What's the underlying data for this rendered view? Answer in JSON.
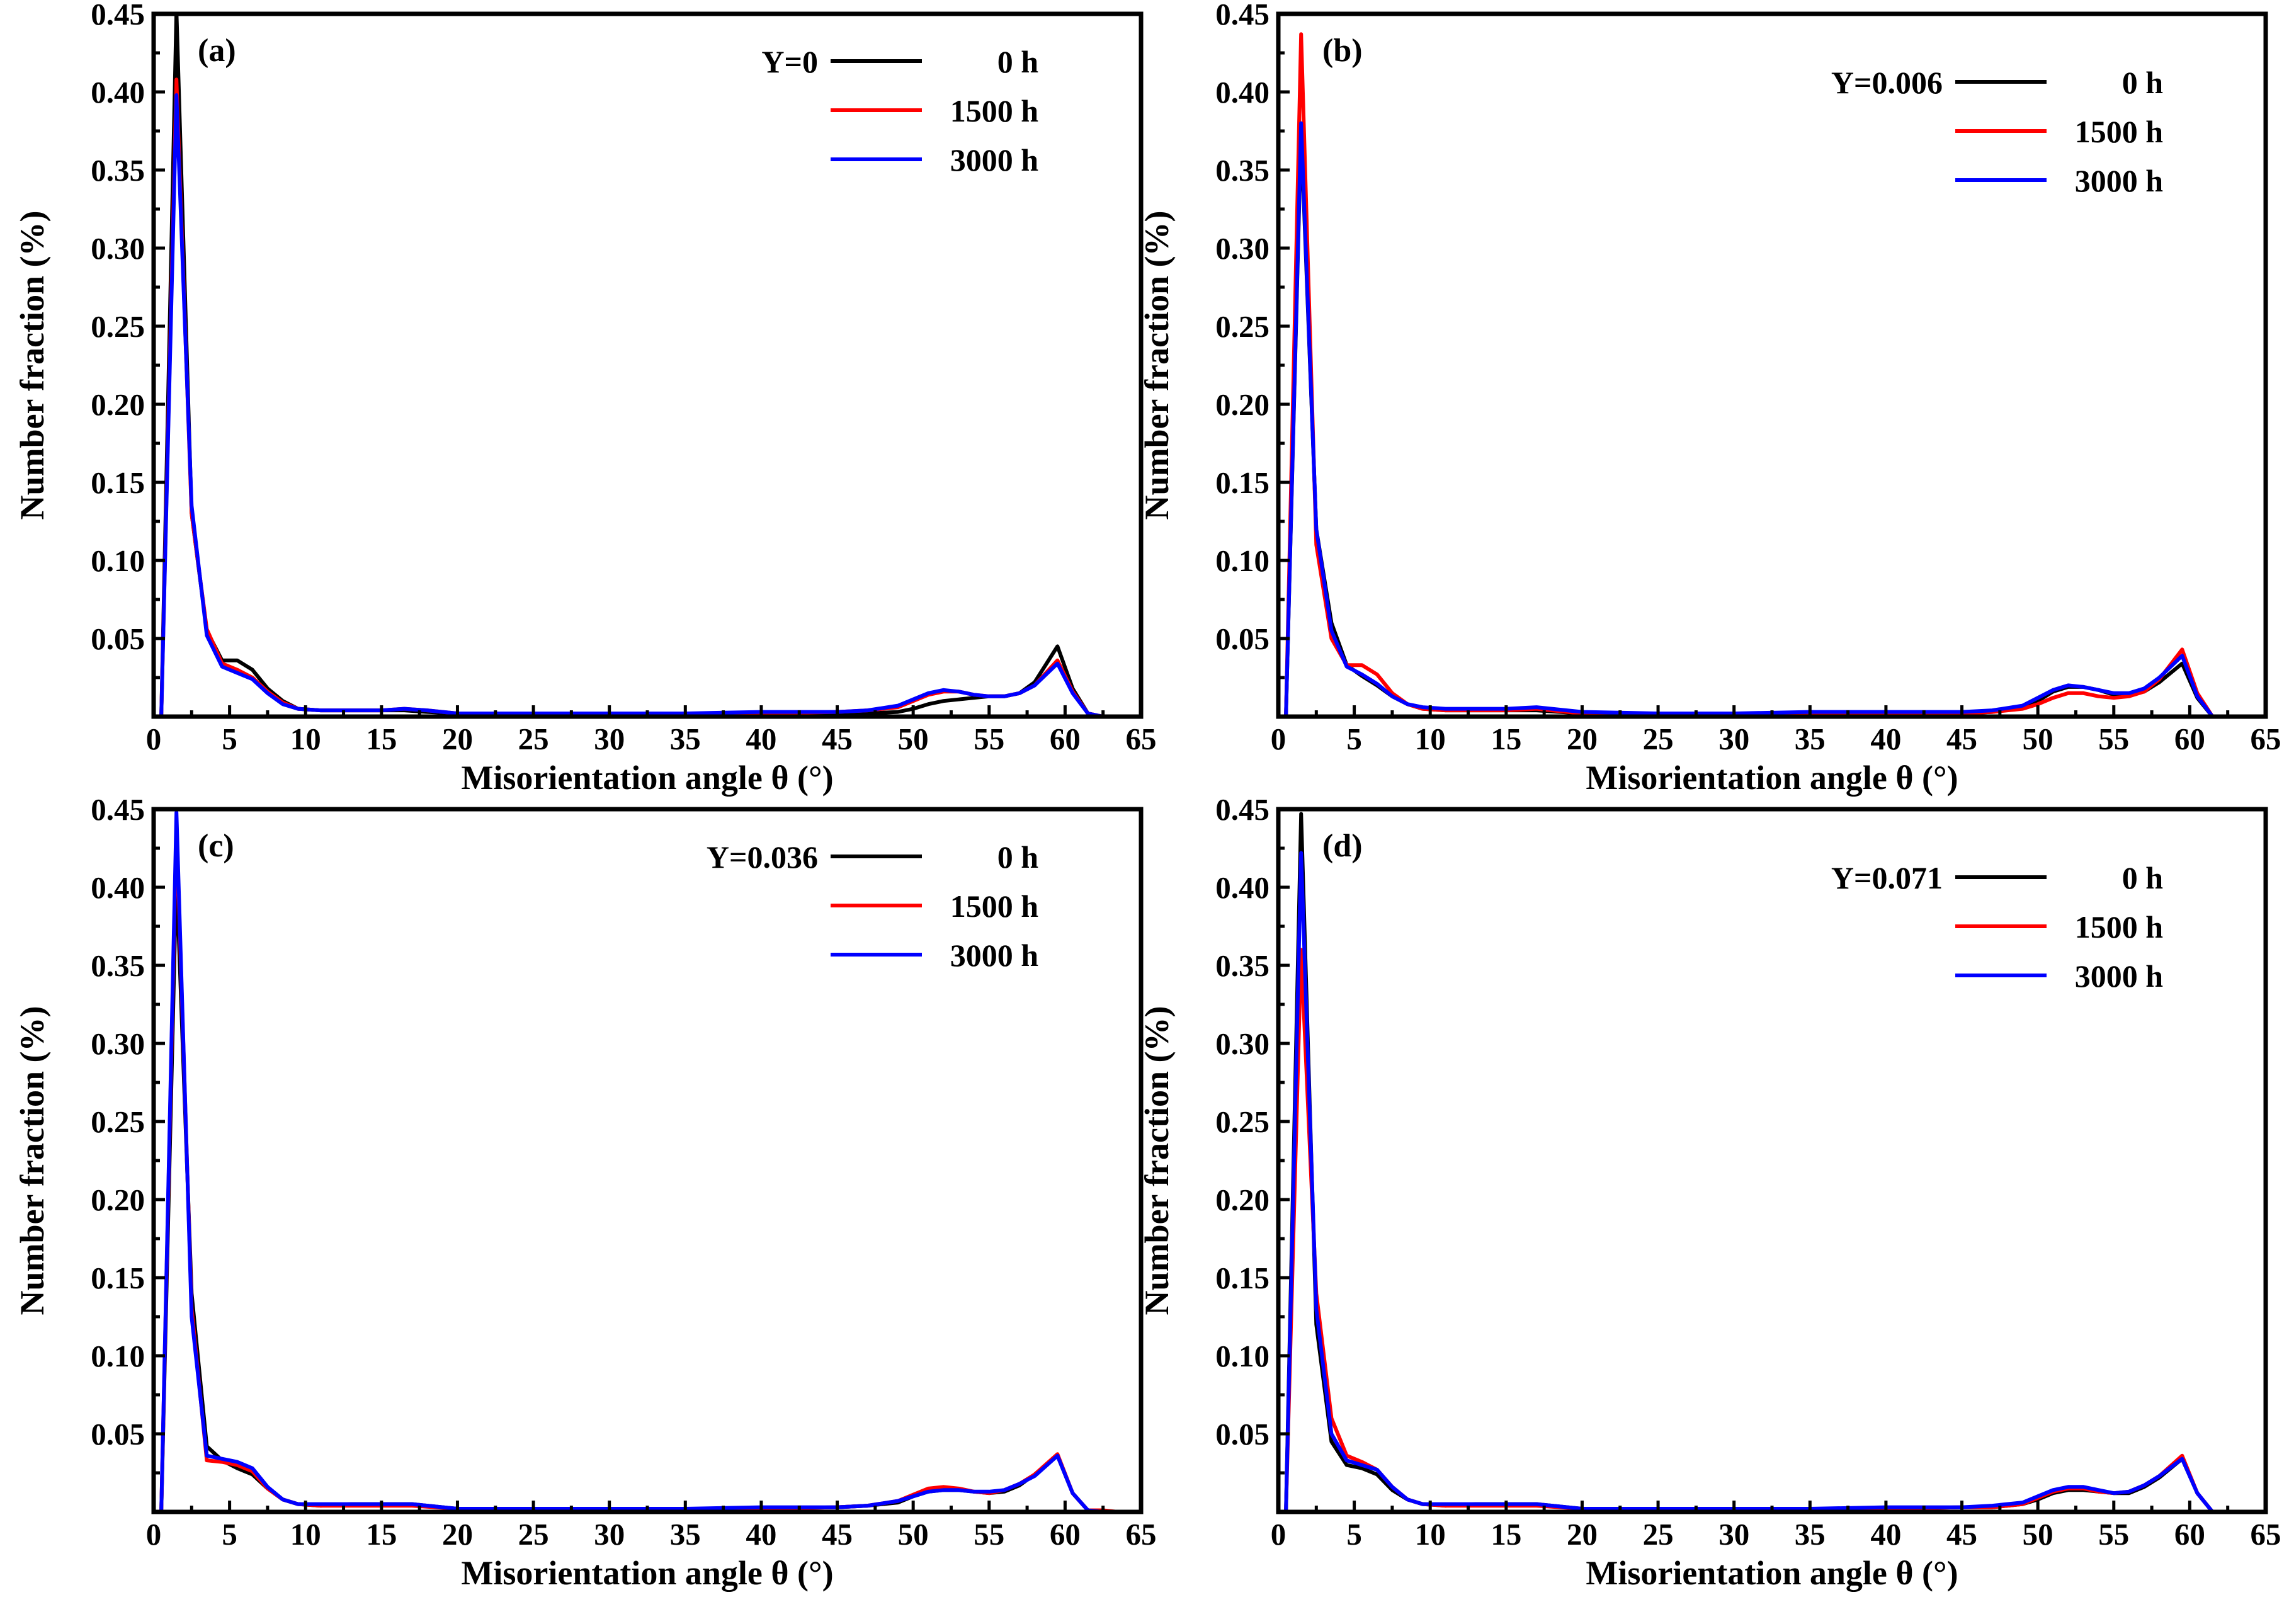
{
  "chart_data": [
    {
      "panel": "(a)",
      "type": "line",
      "title": "",
      "xlabel": "Misorientation angle θ (°)",
      "ylabel": "Number fraction (%)",
      "xlim": [
        0,
        65
      ],
      "ylim": [
        0,
        0.45
      ],
      "x_ticks": [
        "0",
        "5",
        "10",
        "15",
        "20",
        "25",
        "30",
        "35",
        "40",
        "45",
        "50",
        "55",
        "60",
        "65"
      ],
      "y_ticks": [
        "0.05",
        "0.10",
        "0.15",
        "0.20",
        "0.25",
        "0.30",
        "0.35",
        "0.40",
        "0.45"
      ],
      "composition": "Y=0",
      "legend_position": "top-right",
      "series": [
        {
          "name": "0 h",
          "color": "#000000",
          "x": [
            0.5,
            1.5,
            2.5,
            3.5,
            4.5,
            5.5,
            6.5,
            7.5,
            8.5,
            9.5,
            11,
            13,
            15,
            16.5,
            18,
            20,
            25,
            30,
            35,
            40,
            45,
            47,
            49,
            50,
            51,
            52,
            53,
            54,
            55,
            56,
            57,
            58,
            59.5,
            60.5,
            61.5,
            62.5
          ],
          "y": [
            0,
            0.452,
            0.13,
            0.055,
            0.036,
            0.036,
            0.03,
            0.018,
            0.01,
            0.005,
            0.004,
            0.004,
            0.004,
            0.004,
            0.003,
            0.002,
            0.002,
            0.002,
            0.002,
            0.002,
            0.002,
            0.002,
            0.003,
            0.005,
            0.008,
            0.01,
            0.011,
            0.012,
            0.013,
            0.013,
            0.015,
            0.022,
            0.045,
            0.018,
            0.002,
            0
          ]
        },
        {
          "name": "1500 h",
          "color": "#ff0000",
          "x": [
            0.5,
            1.5,
            2.5,
            3.5,
            4.5,
            5.5,
            6.5,
            7.5,
            8.5,
            9.5,
            11,
            13,
            15,
            16.5,
            18,
            20,
            25,
            30,
            35,
            40,
            45,
            47,
            49,
            50,
            51,
            52,
            53,
            54,
            55,
            56,
            57,
            58,
            59.5,
            60.5,
            61.5,
            62.5
          ],
          "y": [
            0,
            0.408,
            0.13,
            0.056,
            0.034,
            0.03,
            0.025,
            0.016,
            0.009,
            0.005,
            0.004,
            0.004,
            0.004,
            0.005,
            0.004,
            0.002,
            0.002,
            0.002,
            0.002,
            0.002,
            0.003,
            0.004,
            0.006,
            0.01,
            0.014,
            0.016,
            0.016,
            0.014,
            0.013,
            0.013,
            0.015,
            0.02,
            0.036,
            0.016,
            0.002,
            0
          ]
        },
        {
          "name": "3000 h",
          "color": "#0000ff",
          "x": [
            0.5,
            1.5,
            2.5,
            3.5,
            4.5,
            5.5,
            6.5,
            7.5,
            8.5,
            9.5,
            11,
            13,
            15,
            16.5,
            18,
            20,
            25,
            30,
            35,
            40,
            45,
            47,
            49,
            50,
            51,
            52,
            53,
            54,
            55,
            56,
            57,
            58,
            59.5,
            60.5,
            61.5,
            62.5
          ],
          "y": [
            0,
            0.398,
            0.135,
            0.052,
            0.032,
            0.028,
            0.024,
            0.015,
            0.008,
            0.005,
            0.004,
            0.004,
            0.004,
            0.005,
            0.004,
            0.002,
            0.002,
            0.002,
            0.002,
            0.003,
            0.003,
            0.004,
            0.007,
            0.011,
            0.015,
            0.017,
            0.016,
            0.014,
            0.013,
            0.013,
            0.015,
            0.02,
            0.034,
            0.015,
            0.002,
            0
          ]
        }
      ]
    },
    {
      "panel": "(b)",
      "type": "line",
      "title": "",
      "xlabel": "Misorientation angle θ (°)",
      "ylabel": "Number fraction (%)",
      "xlim": [
        0,
        65
      ],
      "ylim": [
        0,
        0.45
      ],
      "x_ticks": [
        "0",
        "5",
        "10",
        "15",
        "20",
        "25",
        "30",
        "35",
        "40",
        "45",
        "50",
        "55",
        "60",
        "65"
      ],
      "y_ticks": [
        "0.05",
        "0.10",
        "0.15",
        "0.20",
        "0.25",
        "0.30",
        "0.35",
        "0.40",
        "0.45"
      ],
      "composition": "Y=0.006",
      "legend_position": "top-right",
      "series": [
        {
          "name": "0 h",
          "color": "#000000",
          "x": [
            0.5,
            1.5,
            2.5,
            3.5,
            4.5,
            5.5,
            6.5,
            7.5,
            8.5,
            9.5,
            11,
            13,
            15,
            17,
            20,
            25,
            30,
            35,
            40,
            45,
            47,
            49,
            50,
            51,
            52,
            53,
            54,
            55,
            56,
            57,
            58,
            59.5,
            60.5,
            61.5
          ],
          "y": [
            0,
            0.375,
            0.12,
            0.06,
            0.033,
            0.026,
            0.02,
            0.013,
            0.008,
            0.005,
            0.004,
            0.004,
            0.004,
            0.004,
            0.002,
            0.002,
            0.002,
            0.002,
            0.002,
            0.002,
            0.003,
            0.006,
            0.01,
            0.016,
            0.019,
            0.019,
            0.017,
            0.014,
            0.014,
            0.016,
            0.022,
            0.034,
            0.012,
            0
          ]
        },
        {
          "name": "1500 h",
          "color": "#ff0000",
          "x": [
            0.5,
            1.5,
            2.5,
            3.5,
            4.5,
            5.5,
            6.5,
            7.5,
            8.5,
            9.5,
            11,
            13,
            15,
            17,
            20,
            25,
            30,
            35,
            40,
            45,
            47,
            49,
            50,
            51,
            52,
            53,
            54,
            55,
            56,
            57,
            58,
            59.5,
            60.5,
            61.5
          ],
          "y": [
            0,
            0.437,
            0.11,
            0.05,
            0.033,
            0.033,
            0.027,
            0.015,
            0.008,
            0.005,
            0.004,
            0.004,
            0.004,
            0.005,
            0.002,
            0.002,
            0.002,
            0.002,
            0.002,
            0.002,
            0.003,
            0.005,
            0.008,
            0.012,
            0.015,
            0.015,
            0.013,
            0.012,
            0.013,
            0.016,
            0.024,
            0.043,
            0.015,
            0
          ]
        },
        {
          "name": "3000 h",
          "color": "#0000ff",
          "x": [
            0.5,
            1.5,
            2.5,
            3.5,
            4.5,
            5.5,
            6.5,
            7.5,
            8.5,
            9.5,
            11,
            13,
            15,
            17,
            20,
            25,
            30,
            35,
            40,
            45,
            47,
            49,
            50,
            51,
            52,
            53,
            54,
            55,
            56,
            57,
            58,
            59.5,
            60.5,
            61.5
          ],
          "y": [
            0,
            0.38,
            0.12,
            0.055,
            0.032,
            0.027,
            0.021,
            0.013,
            0.008,
            0.006,
            0.005,
            0.005,
            0.005,
            0.006,
            0.003,
            0.002,
            0.002,
            0.003,
            0.003,
            0.003,
            0.004,
            0.007,
            0.012,
            0.017,
            0.02,
            0.019,
            0.017,
            0.015,
            0.015,
            0.018,
            0.025,
            0.039,
            0.013,
            0
          ]
        }
      ]
    },
    {
      "panel": "(c)",
      "type": "line",
      "title": "",
      "xlabel": "Misorientation angle θ (°)",
      "ylabel": "Number fraction (%)",
      "xlim": [
        0,
        65
      ],
      "ylim": [
        0,
        0.45
      ],
      "x_ticks": [
        "0",
        "5",
        "10",
        "15",
        "20",
        "25",
        "30",
        "35",
        "40",
        "45",
        "50",
        "55",
        "60",
        "65"
      ],
      "y_ticks": [
        "0.05",
        "0.10",
        "0.15",
        "0.20",
        "0.25",
        "0.30",
        "0.35",
        "0.40",
        "0.45"
      ],
      "composition": "Y=0.036",
      "legend_position": "top-right",
      "series": [
        {
          "name": "0 h",
          "color": "#000000",
          "x": [
            0.5,
            1.5,
            2.5,
            3.5,
            4.5,
            5.5,
            6.5,
            7.5,
            8.5,
            9.5,
            11,
            13,
            15,
            17,
            20,
            25,
            30,
            35,
            40,
            45,
            47,
            49,
            50,
            51,
            52,
            53,
            54,
            55,
            56,
            57,
            58,
            59.5,
            60.5,
            61.5,
            62.5,
            63.5
          ],
          "y": [
            0,
            0.41,
            0.14,
            0.042,
            0.033,
            0.028,
            0.024,
            0.015,
            0.008,
            0.005,
            0.004,
            0.005,
            0.005,
            0.005,
            0.002,
            0.002,
            0.002,
            0.002,
            0.002,
            0.003,
            0.004,
            0.006,
            0.01,
            0.013,
            0.014,
            0.014,
            0.013,
            0.012,
            0.013,
            0.017,
            0.024,
            0.036,
            0.012,
            0.001,
            0,
            0
          ]
        },
        {
          "name": "1500 h",
          "color": "#ff0000",
          "x": [
            0.5,
            1.5,
            2.5,
            3.5,
            4.5,
            5.5,
            6.5,
            7.5,
            8.5,
            9.5,
            11,
            13,
            15,
            17,
            20,
            25,
            30,
            35,
            40,
            45,
            47,
            49,
            50,
            51,
            52,
            53,
            54,
            55,
            56,
            57,
            58,
            59.5,
            60.5,
            61.5,
            62.5,
            63.5
          ],
          "y": [
            0,
            0.44,
            0.13,
            0.033,
            0.032,
            0.03,
            0.026,
            0.015,
            0.008,
            0.005,
            0.004,
            0.004,
            0.004,
            0.004,
            0.002,
            0.002,
            0.002,
            0.002,
            0.002,
            0.003,
            0.004,
            0.007,
            0.011,
            0.015,
            0.016,
            0.015,
            0.013,
            0.012,
            0.014,
            0.018,
            0.024,
            0.037,
            0.012,
            0.001,
            0.001,
            0
          ]
        },
        {
          "name": "3000 h",
          "color": "#0000ff",
          "x": [
            0.5,
            1.5,
            2.5,
            3.5,
            4.5,
            5.5,
            6.5,
            7.5,
            8.5,
            9.5,
            11,
            13,
            15,
            17,
            20,
            25,
            30,
            35,
            40,
            45,
            47,
            49,
            50,
            51,
            52,
            53,
            54,
            55,
            56,
            57,
            58,
            59.5,
            60.5,
            61.5,
            62.5,
            63.5
          ],
          "y": [
            0,
            0.448,
            0.125,
            0.036,
            0.034,
            0.032,
            0.028,
            0.016,
            0.008,
            0.005,
            0.005,
            0.005,
            0.005,
            0.005,
            0.002,
            0.002,
            0.002,
            0.002,
            0.003,
            0.003,
            0.004,
            0.007,
            0.01,
            0.013,
            0.014,
            0.014,
            0.013,
            0.013,
            0.014,
            0.018,
            0.023,
            0.036,
            0.012,
            0.001,
            0,
            0
          ]
        }
      ]
    },
    {
      "panel": "(d)",
      "type": "line",
      "title": "",
      "xlabel": "Misorientation angle θ (°)",
      "ylabel": "Number fraction (%)",
      "xlim": [
        0,
        65
      ],
      "ylim": [
        0,
        0.45
      ],
      "x_ticks": [
        "0",
        "5",
        "10",
        "15",
        "20",
        "25",
        "30",
        "35",
        "40",
        "45",
        "50",
        "55",
        "60",
        "65"
      ],
      "y_ticks": [
        "0.05",
        "0.10",
        "0.15",
        "0.20",
        "0.25",
        "0.30",
        "0.35",
        "0.40",
        "0.45"
      ],
      "composition": "Y=0.071",
      "legend_position": "top-right",
      "series": [
        {
          "name": "0 h",
          "color": "#000000",
          "x": [
            0.5,
            1.5,
            2.5,
            3.5,
            4.5,
            5.5,
            6.5,
            7.5,
            8.5,
            9.5,
            11,
            13,
            15,
            17,
            20,
            25,
            30,
            35,
            40,
            45,
            47,
            49,
            50,
            51,
            52,
            53,
            54,
            55,
            56,
            57,
            58,
            59.5,
            60.5,
            61.5,
            62.5,
            63.5
          ],
          "y": [
            0,
            0.447,
            0.12,
            0.045,
            0.03,
            0.028,
            0.024,
            0.014,
            0.008,
            0.005,
            0.004,
            0.005,
            0.005,
            0.005,
            0.002,
            0.002,
            0.002,
            0.002,
            0.002,
            0.003,
            0.003,
            0.005,
            0.008,
            0.012,
            0.014,
            0.014,
            0.013,
            0.012,
            0.012,
            0.016,
            0.022,
            0.034,
            0.012,
            0,
            0,
            0
          ]
        },
        {
          "name": "1500 h",
          "color": "#ff0000",
          "x": [
            0.5,
            1.5,
            2.5,
            3.5,
            4.5,
            5.5,
            6.5,
            7.5,
            8.5,
            9.5,
            11,
            13,
            15,
            17,
            20,
            25,
            30,
            35,
            40,
            45,
            47,
            49,
            50,
            51,
            52,
            53,
            54,
            55,
            56,
            57,
            58,
            59.5,
            60.5,
            61.5,
            62.5,
            63.5
          ],
          "y": [
            0,
            0.36,
            0.14,
            0.06,
            0.036,
            0.032,
            0.027,
            0.016,
            0.008,
            0.005,
            0.004,
            0.004,
            0.004,
            0.004,
            0.002,
            0.002,
            0.002,
            0.002,
            0.002,
            0.003,
            0.003,
            0.005,
            0.009,
            0.013,
            0.015,
            0.015,
            0.013,
            0.012,
            0.013,
            0.017,
            0.023,
            0.036,
            0.012,
            0,
            0,
            0
          ]
        },
        {
          "name": "3000 h",
          "color": "#0000ff",
          "x": [
            0.5,
            1.5,
            2.5,
            3.5,
            4.5,
            5.5,
            6.5,
            7.5,
            8.5,
            9.5,
            11,
            13,
            15,
            17,
            20,
            25,
            30,
            35,
            40,
            45,
            47,
            49,
            50,
            51,
            52,
            53,
            54,
            55,
            56,
            57,
            58,
            59.5,
            60.5,
            61.5,
            62.5,
            63.5
          ],
          "y": [
            0,
            0.422,
            0.13,
            0.05,
            0.033,
            0.03,
            0.027,
            0.016,
            0.008,
            0.005,
            0.005,
            0.005,
            0.005,
            0.005,
            0.002,
            0.002,
            0.002,
            0.002,
            0.003,
            0.003,
            0.004,
            0.006,
            0.01,
            0.014,
            0.016,
            0.016,
            0.014,
            0.012,
            0.013,
            0.017,
            0.023,
            0.034,
            0.012,
            0,
            0,
            0
          ]
        }
      ]
    }
  ]
}
